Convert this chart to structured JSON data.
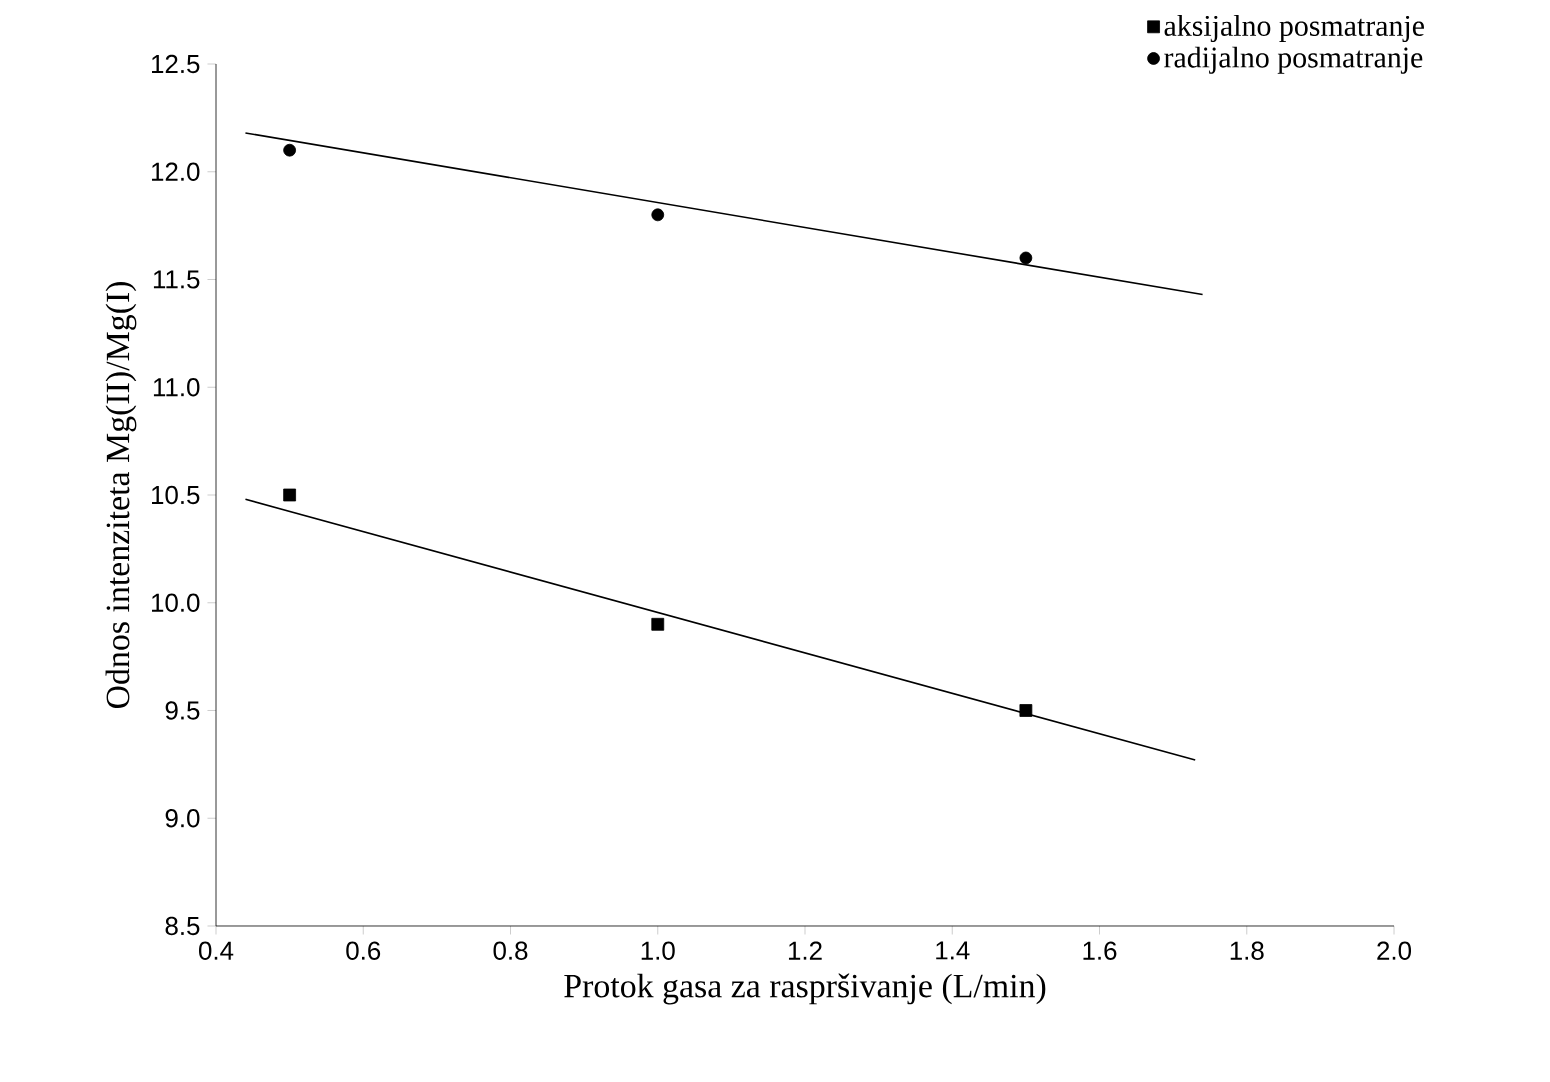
{
  "chart_data": {
    "type": "scatter",
    "xlabel": "Protok gasa za raspršivanje (L/min)",
    "ylabel": "Odnos intenziteta Mg(II)/Mg(I)",
    "x": [
      0.5,
      1.0,
      1.5
    ],
    "series": [
      {
        "name": "aksijalno posmatranje",
        "color": "#000000",
        "marker": "square",
        "values": [
          10.5,
          9.9,
          9.5
        ]
      },
      {
        "name": "radijalno posmatranje",
        "color": "#000000",
        "marker": "circle",
        "values": [
          12.1,
          11.8,
          11.6
        ]
      },
      {
        "type": "line",
        "color": "#000000",
        "x": [
          0.44,
          1.73
        ],
        "values": [
          10.48,
          9.27
        ]
      },
      {
        "type": "line",
        "color": "#000000",
        "x": [
          0.44,
          1.74
        ],
        "values": [
          12.18,
          11.43
        ]
      }
    ],
    "xlim": [
      0.4,
      2.0
    ],
    "ylim": [
      8.5,
      12.5
    ],
    "xticks": [
      0.4,
      0.6,
      0.8,
      {
        "value": 1.0,
        "label": "1.0"
      },
      1.2,
      1.4,
      1.6,
      1.8,
      {
        "value": 2.0,
        "label": "2.0"
      }
    ],
    "yticks": [
      8.5,
      {
        "value": 9.0,
        "label": "9.0"
      },
      9.5,
      {
        "value": 10.0,
        "label": "10.0"
      },
      10.5,
      {
        "value": 11.0,
        "label": "11.0"
      },
      11.5,
      {
        "value": 12.0,
        "label": "12.0"
      },
      12.5
    ],
    "grid": false,
    "legend": "top right"
  }
}
